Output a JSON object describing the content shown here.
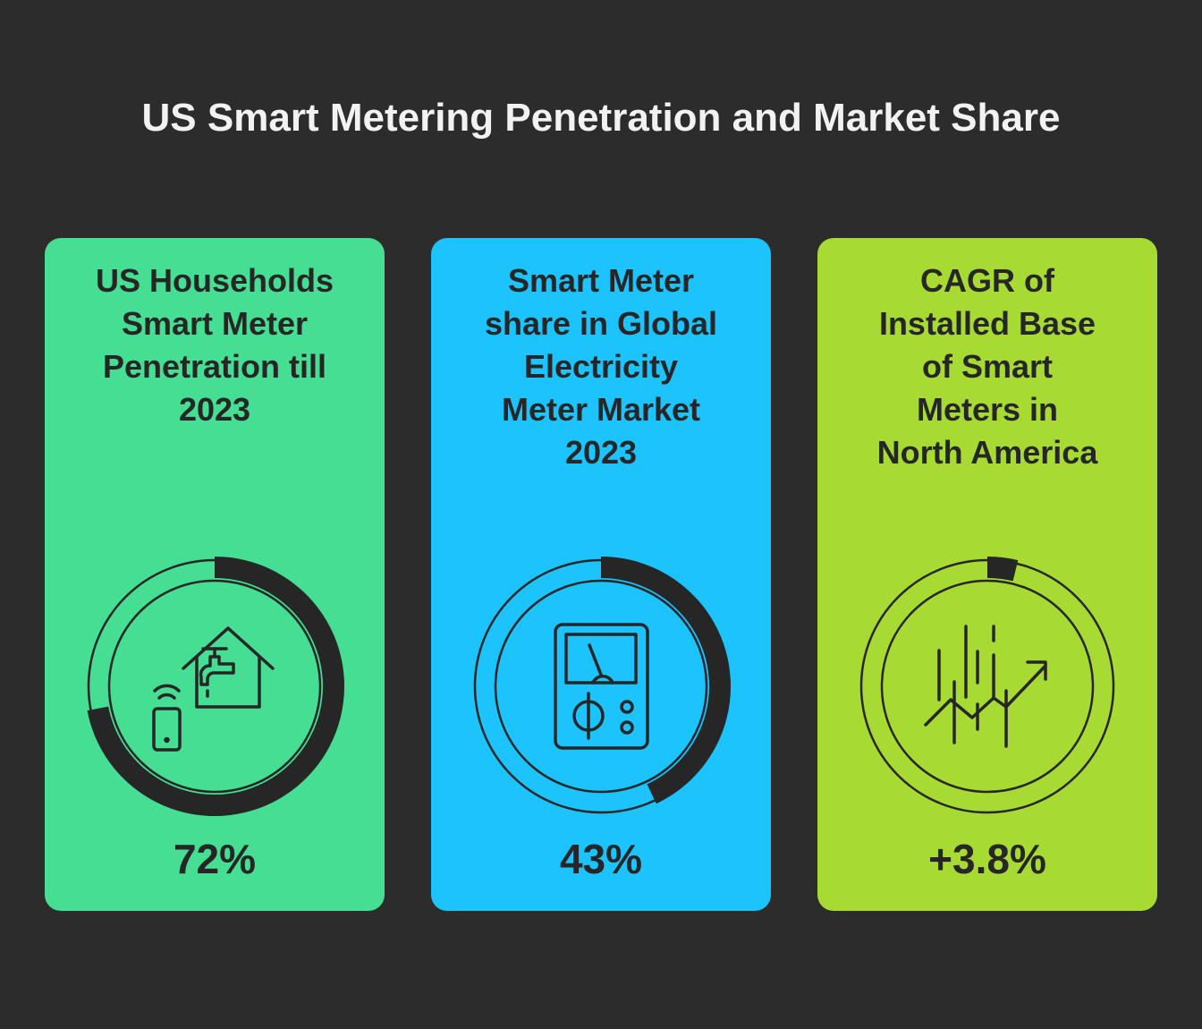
{
  "title": "US Smart Metering Penetration and Market Share",
  "chart_data": {
    "type": "donut",
    "title": "US Smart Metering Penetration and Market Share",
    "items": [
      {
        "label_lines": [
          "US Households",
          "Smart Meter",
          "Penetration till",
          "2023"
        ],
        "value_text": "72%",
        "value": 72,
        "unit": "%",
        "color": "#45de93",
        "icon": "smart-home-icon"
      },
      {
        "label_lines": [
          "Smart Meter",
          "share in Global",
          "Electricity",
          "Meter Market",
          "2023"
        ],
        "value_text": "43%",
        "value": 43,
        "unit": "%",
        "color": "#1cc3fd",
        "icon": "electricity-meter-icon"
      },
      {
        "label_lines": [
          "CAGR of",
          "Installed Base",
          "of Smart",
          "Meters in",
          "North America"
        ],
        "value_text": "+3.8%",
        "value": 3.8,
        "unit": "%",
        "color": "#a7db34",
        "icon": "growth-chart-icon"
      }
    ]
  }
}
